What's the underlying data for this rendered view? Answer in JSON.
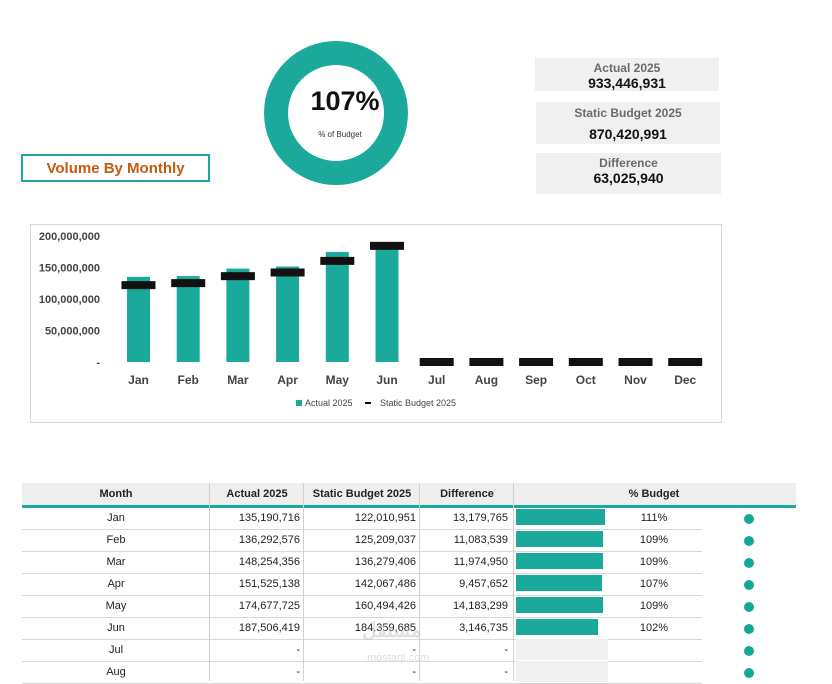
{
  "gauge": {
    "percent": 1.07,
    "value_label": "107%",
    "sub_label": "% of Budget",
    "color": "#1aa99a"
  },
  "title": "Volume By Monthly",
  "kpis": [
    {
      "label": "Actual 2025",
      "value": "933,446,931"
    },
    {
      "label": "Static Budget 2025",
      "value": "870,420,991"
    },
    {
      "label": "Difference",
      "value": "63,025,940"
    }
  ],
  "chart_data": {
    "type": "bar",
    "categories": [
      "Jan",
      "Feb",
      "Mar",
      "Apr",
      "May",
      "Jun",
      "Jul",
      "Aug",
      "Sep",
      "Oct",
      "Nov",
      "Dec"
    ],
    "series": [
      {
        "name": "Actual 2025",
        "kind": "bar",
        "color": "#1aa99a",
        "values": [
          135190716,
          136292576,
          148254356,
          151525138,
          174677725,
          187506419,
          0,
          0,
          0,
          0,
          0,
          0
        ]
      },
      {
        "name": "Static Budget 2025",
        "kind": "marker",
        "color": "#111111",
        "values": [
          122010951,
          125209037,
          136279406,
          142067486,
          160494426,
          184359685,
          0,
          0,
          0,
          0,
          0,
          0
        ]
      }
    ],
    "y_ticks": [
      "200,000,000",
      "150,000,000",
      "100,000,000",
      "50,000,000",
      "-"
    ],
    "ylim": [
      0,
      200000000
    ],
    "grid": false,
    "legend": "bottom"
  },
  "table": {
    "headers": [
      "Month",
      "Actual 2025",
      "Static Budget 2025",
      "Difference",
      "% Budget"
    ],
    "rows": [
      {
        "month": "Jan",
        "actual": "135,190,716",
        "budget": "122,010,951",
        "diff": "13,179,765",
        "pct": "111%",
        "pct_value": 1.11
      },
      {
        "month": "Feb",
        "actual": "136,292,576",
        "budget": "125,209,037",
        "diff": "11,083,539",
        "pct": "109%",
        "pct_value": 1.09
      },
      {
        "month": "Mar",
        "actual": "148,254,356",
        "budget": "136,279,406",
        "diff": "11,974,950",
        "pct": "109%",
        "pct_value": 1.09
      },
      {
        "month": "Apr",
        "actual": "151,525,138",
        "budget": "142,067,486",
        "diff": "9,457,652",
        "pct": "107%",
        "pct_value": 1.07
      },
      {
        "month": "May",
        "actual": "174,677,725",
        "budget": "160,494,426",
        "diff": "14,183,299",
        "pct": "109%",
        "pct_value": 1.09
      },
      {
        "month": "Jun",
        "actual": "187,506,419",
        "budget": "184,359,685",
        "diff": "3,146,735",
        "pct": "102%",
        "pct_value": 1.02
      },
      {
        "month": "Jul",
        "actual": "-",
        "budget": "-",
        "diff": "-",
        "pct": "",
        "pct_value": null
      },
      {
        "month": "Aug",
        "actual": "-",
        "budget": "-",
        "diff": "-",
        "pct": "",
        "pct_value": null
      }
    ]
  },
  "watermark": {
    "text": "مستقل",
    "sub": "mostaql.com"
  },
  "colors": {
    "accent": "#1aa99a",
    "title": "#c55a11",
    "marker": "#111111",
    "card": "#f0f0f0"
  }
}
